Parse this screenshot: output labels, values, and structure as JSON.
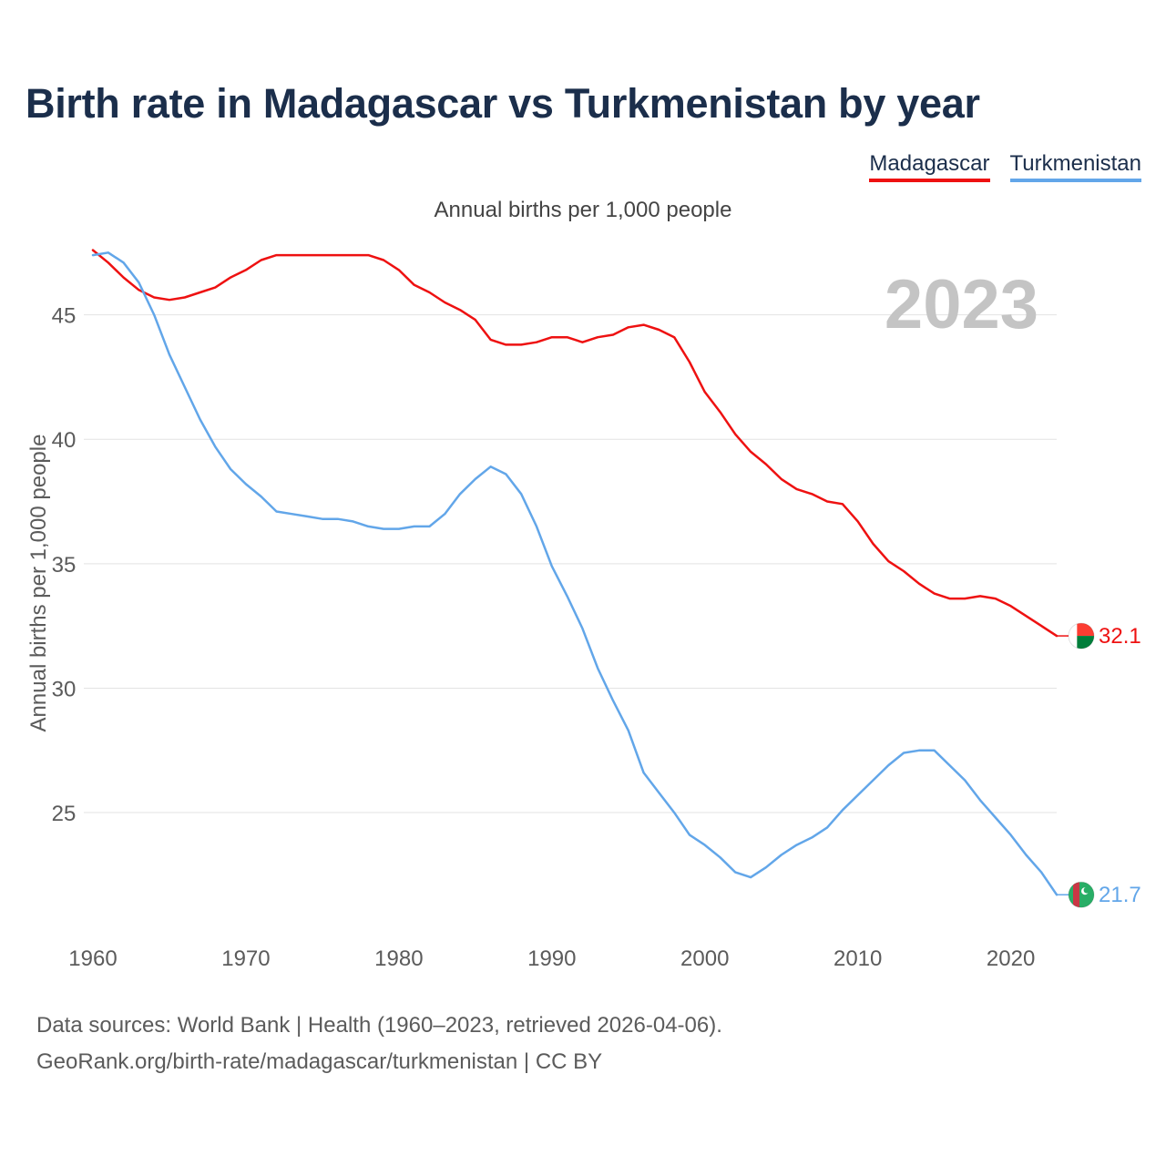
{
  "title": "Birth rate in Madagascar vs Turkmenistan by year",
  "subtitle": "Annual births per 1,000 people",
  "year_label": "2023",
  "source_line1": "Data sources: World Bank | Health (1960–2023, retrieved 2026-04-06).",
  "source_line2": "GeoRank.org/birth-rate/madagascar/turkmenistan | CC BY",
  "chart_data": {
    "type": "line",
    "title": "Birth rate in Madagascar vs Turkmenistan by year",
    "xlabel": "",
    "ylabel": "Annual births per 1,000 people",
    "xlim": [
      1960,
      2023
    ],
    "ylim": [
      20.5,
      48.5
    ],
    "x_ticks": [
      1960,
      1970,
      1980,
      1990,
      2000,
      2010,
      2020
    ],
    "y_ticks": [
      25,
      30,
      35,
      40,
      45
    ],
    "grid": true,
    "legend_position": "top-right",
    "x": [
      1960,
      1961,
      1962,
      1963,
      1964,
      1965,
      1966,
      1967,
      1968,
      1969,
      1970,
      1971,
      1972,
      1973,
      1974,
      1975,
      1976,
      1977,
      1978,
      1979,
      1980,
      1981,
      1982,
      1983,
      1984,
      1985,
      1986,
      1987,
      1988,
      1989,
      1990,
      1991,
      1992,
      1993,
      1994,
      1995,
      1996,
      1997,
      1998,
      1999,
      2000,
      2001,
      2002,
      2003,
      2004,
      2005,
      2006,
      2007,
      2008,
      2009,
      2010,
      2011,
      2012,
      2013,
      2014,
      2015,
      2016,
      2017,
      2018,
      2019,
      2020,
      2021,
      2022,
      2023
    ],
    "series": [
      {
        "name": "Madagascar",
        "color": "#ee1111",
        "end_label": "32.1",
        "values": [
          47.6,
          47.1,
          46.5,
          46.0,
          45.7,
          45.6,
          45.7,
          45.9,
          46.1,
          46.5,
          46.8,
          47.2,
          47.4,
          47.4,
          47.4,
          47.4,
          47.4,
          47.4,
          47.4,
          47.2,
          46.8,
          46.2,
          45.9,
          45.5,
          45.2,
          44.8,
          44.0,
          43.8,
          43.8,
          43.9,
          44.1,
          44.1,
          43.9,
          44.1,
          44.2,
          44.5,
          44.6,
          44.4,
          44.1,
          43.1,
          41.9,
          41.1,
          40.2,
          39.5,
          39.0,
          38.4,
          38.0,
          37.8,
          37.5,
          37.4,
          36.7,
          35.8,
          35.1,
          34.7,
          34.2,
          33.8,
          33.6,
          33.6,
          33.7,
          33.6,
          33.3,
          32.9,
          32.5,
          32.1
        ]
      },
      {
        "name": "Turkmenistan",
        "color": "#62a6e9",
        "end_label": "21.7",
        "values": [
          47.4,
          47.5,
          47.1,
          46.3,
          45.0,
          43.4,
          42.1,
          40.8,
          39.7,
          38.8,
          38.2,
          37.7,
          37.1,
          37.0,
          36.9,
          36.8,
          36.8,
          36.7,
          36.5,
          36.4,
          36.4,
          36.5,
          36.5,
          37.0,
          37.8,
          38.4,
          38.9,
          38.6,
          37.8,
          36.5,
          34.9,
          33.7,
          32.4,
          30.8,
          29.5,
          28.3,
          26.6,
          25.8,
          25.0,
          24.1,
          23.7,
          23.2,
          22.6,
          22.4,
          22.8,
          23.3,
          23.7,
          24.0,
          24.4,
          25.1,
          25.7,
          26.3,
          26.9,
          27.4,
          27.5,
          27.5,
          26.9,
          26.3,
          25.5,
          24.8,
          24.1,
          23.3,
          22.6,
          21.7
        ]
      }
    ]
  }
}
